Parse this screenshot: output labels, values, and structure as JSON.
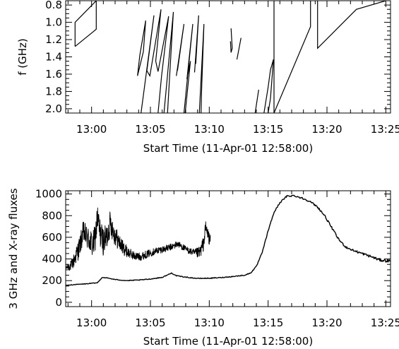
{
  "chart_data": [
    {
      "type": "line",
      "panel": "top",
      "xlabel": "Start Time (11-Apr-01 12:58:00)",
      "ylabel": "f (GHz)",
      "xlim_minutes": [
        -0.2,
        27.4
      ],
      "ylim": [
        2.05,
        0.75
      ],
      "y_inverted": true,
      "x_ticks": [
        {
          "m": 2,
          "label": "13:00"
        },
        {
          "m": 7,
          "label": "13:05"
        },
        {
          "m": 12,
          "label": "13:10"
        },
        {
          "m": 17,
          "label": "13:15"
        },
        {
          "m": 22,
          "label": "13:20"
        },
        {
          "m": 27,
          "label": "13:25"
        }
      ],
      "y_ticks": [
        {
          "v": 0.8,
          "label": "0.8"
        },
        {
          "v": 1.0,
          "label": "1.0"
        },
        {
          "v": 1.2,
          "label": "1.2"
        },
        {
          "v": 1.4,
          "label": "1.4"
        },
        {
          "v": 1.6,
          "label": "1.6"
        },
        {
          "v": 1.8,
          "label": "1.8"
        },
        {
          "v": 2.0,
          "label": "2.0"
        }
      ],
      "segments": [
        [
          [
            0.6,
            1.28
          ],
          [
            0.6,
            1.0
          ],
          [
            2.4,
            0.75
          ],
          [
            2.4,
            1.08
          ],
          [
            0.6,
            1.28
          ]
        ],
        [
          [
            5.9,
            1.62
          ],
          [
            6.1,
            1.38
          ],
          [
            6.6,
            0.98
          ],
          [
            6.4,
            1.34
          ],
          [
            5.9,
            1.62
          ]
        ],
        [
          [
            6.2,
            2.05
          ],
          [
            7.3,
            0.92
          ],
          [
            6.7,
            1.56
          ],
          [
            6.95,
            1.62
          ],
          [
            7.9,
            0.85
          ],
          [
            7.45,
            1.45
          ],
          [
            7.65,
            1.57
          ],
          [
            8.55,
            0.93
          ],
          [
            7.95,
            1.62
          ],
          [
            7.65,
            2.05
          ]
        ],
        [
          [
            8.15,
            2.05
          ],
          [
            8.95,
            0.88
          ],
          [
            8.45,
            2.05
          ]
        ],
        [
          [
            9.2,
            1.62
          ],
          [
            9.85,
            1.02
          ],
          [
            9.3,
            1.56
          ]
        ],
        [
          [
            9.85,
            2.05
          ],
          [
            10.6,
            1.02
          ],
          [
            10.1,
            1.66
          ],
          [
            10.4,
            1.45
          ],
          [
            9.95,
            2.05
          ]
        ],
        [
          [
            10.75,
            1.58
          ],
          [
            11.1,
            0.92
          ],
          [
            10.85,
            1.48
          ]
        ],
        [
          [
            11.15,
            2.05
          ],
          [
            11.55,
            1.02
          ],
          [
            11.35,
            1.78
          ],
          [
            11.3,
            2.05
          ]
        ],
        [
          [
            13.85,
            1.07
          ],
          [
            13.95,
            1.3
          ],
          [
            13.85,
            1.35
          ],
          [
            13.8,
            1.22
          ]
        ],
        [
          [
            14.35,
            1.43
          ],
          [
            14.7,
            1.18
          ]
        ],
        [
          [
            15.9,
            2.05
          ],
          [
            16.2,
            1.78
          ]
        ],
        [
          [
            16.65,
            2.05
          ],
          [
            17.0,
            1.75
          ],
          [
            17.2,
            1.55
          ],
          [
            17.45,
            1.43
          ],
          [
            17.2,
            1.88
          ],
          [
            17.0,
            2.05
          ]
        ],
        [
          [
            17.5,
            0.75
          ],
          [
            17.5,
            2.05
          ],
          [
            20.6,
            1.05
          ],
          [
            20.6,
            0.75
          ]
        ],
        [
          [
            21.2,
            0.75
          ],
          [
            21.2,
            1.3
          ],
          [
            24.5,
            0.85
          ],
          [
            27.0,
            0.75
          ]
        ]
      ]
    },
    {
      "type": "line",
      "panel": "bottom",
      "xlabel": "Start Time (11-Apr-01 12:58:00)",
      "ylabel": "3 GHz and X-ray fluxes",
      "xlim_minutes": [
        -0.2,
        27.4
      ],
      "ylim": [
        -40,
        1030
      ],
      "x_ticks": [
        {
          "m": 2,
          "label": "13:00"
        },
        {
          "m": 7,
          "label": "13:05"
        },
        {
          "m": 12,
          "label": "13:10"
        },
        {
          "m": 17,
          "label": "13:15"
        },
        {
          "m": 22,
          "label": "13:20"
        },
        {
          "m": 27,
          "label": "13:25"
        }
      ],
      "y_ticks": [
        {
          "v": 0,
          "label": "0"
        },
        {
          "v": 200,
          "label": "200"
        },
        {
          "v": 400,
          "label": "400"
        },
        {
          "v": 600,
          "label": "600"
        },
        {
          "v": 800,
          "label": "800"
        },
        {
          "v": 1000,
          "label": "1000"
        }
      ],
      "series": [
        {
          "style": "noisy",
          "points": [
            [
              -0.2,
              320
            ],
            [
              0.3,
              340
            ],
            [
              0.6,
              410
            ],
            [
              1.0,
              520
            ],
            [
              1.3,
              650
            ],
            [
              1.6,
              600
            ],
            [
              1.9,
              560
            ],
            [
              2.1,
              520
            ],
            [
              2.3,
              590
            ],
            [
              2.5,
              780
            ],
            [
              2.7,
              650
            ],
            [
              3.0,
              560
            ],
            [
              3.3,
              600
            ],
            [
              3.6,
              740
            ],
            [
              3.9,
              640
            ],
            [
              4.3,
              560
            ],
            [
              4.7,
              500
            ],
            [
              5.1,
              460
            ],
            [
              5.6,
              430
            ],
            [
              6.1,
              420
            ],
            [
              6.6,
              440
            ],
            [
              7.1,
              460
            ],
            [
              7.6,
              480
            ],
            [
              8.1,
              490
            ],
            [
              8.6,
              505
            ],
            [
              9.0,
              520
            ],
            [
              9.3,
              540
            ],
            [
              9.6,
              520
            ],
            [
              10.0,
              490
            ],
            [
              10.4,
              470
            ],
            [
              10.8,
              450
            ],
            [
              11.2,
              460
            ],
            [
              11.5,
              540
            ],
            [
              11.7,
              690
            ],
            [
              11.9,
              620
            ],
            [
              12.1,
              560
            ]
          ],
          "noise_amp": [
            [
              -0.2,
              18
            ],
            [
              0.8,
              90
            ],
            [
              1.5,
              110
            ],
            [
              2.5,
              140
            ],
            [
              3.6,
              120
            ],
            [
              4.5,
              70
            ],
            [
              5.5,
              40
            ],
            [
              7.5,
              32
            ],
            [
              10.5,
              30
            ],
            [
              11.5,
              70
            ],
            [
              12.1,
              60
            ]
          ]
        },
        {
          "style": "smooth",
          "points": [
            [
              -0.2,
              155
            ],
            [
              0.5,
              163
            ],
            [
              1.5,
              170
            ],
            [
              2.5,
              180
            ],
            [
              2.9,
              230
            ],
            [
              3.3,
              225
            ],
            [
              4.0,
              210
            ],
            [
              5.0,
              200
            ],
            [
              6.0,
              205
            ],
            [
              7.0,
              215
            ],
            [
              8.0,
              230
            ],
            [
              8.6,
              260
            ],
            [
              8.8,
              270
            ],
            [
              9.2,
              245
            ],
            [
              10.0,
              232
            ],
            [
              11.0,
              220
            ],
            [
              12.0,
              222
            ],
            [
              13.0,
              228
            ],
            [
              14.0,
              238
            ],
            [
              15.0,
              250
            ],
            [
              15.5,
              270
            ],
            [
              16.0,
              330
            ],
            [
              16.5,
              460
            ],
            [
              17.0,
              660
            ],
            [
              17.5,
              830
            ],
            [
              18.0,
              920
            ],
            [
              18.6,
              980
            ],
            [
              19.2,
              985
            ],
            [
              19.8,
              965
            ],
            [
              20.5,
              935
            ],
            [
              21.2,
              880
            ],
            [
              21.8,
              800
            ],
            [
              22.4,
              690
            ],
            [
              23.0,
              580
            ],
            [
              23.6,
              510
            ],
            [
              24.2,
              480
            ],
            [
              25.0,
              450
            ],
            [
              25.8,
              420
            ],
            [
              26.5,
              390
            ],
            [
              27.4,
              380
            ]
          ],
          "noise_amp": [
            [
              -0.2,
              3
            ],
            [
              15,
              4
            ],
            [
              16.5,
              6
            ],
            [
              20,
              8
            ],
            [
              24,
              10
            ],
            [
              27.4,
              14
            ]
          ]
        }
      ]
    }
  ]
}
